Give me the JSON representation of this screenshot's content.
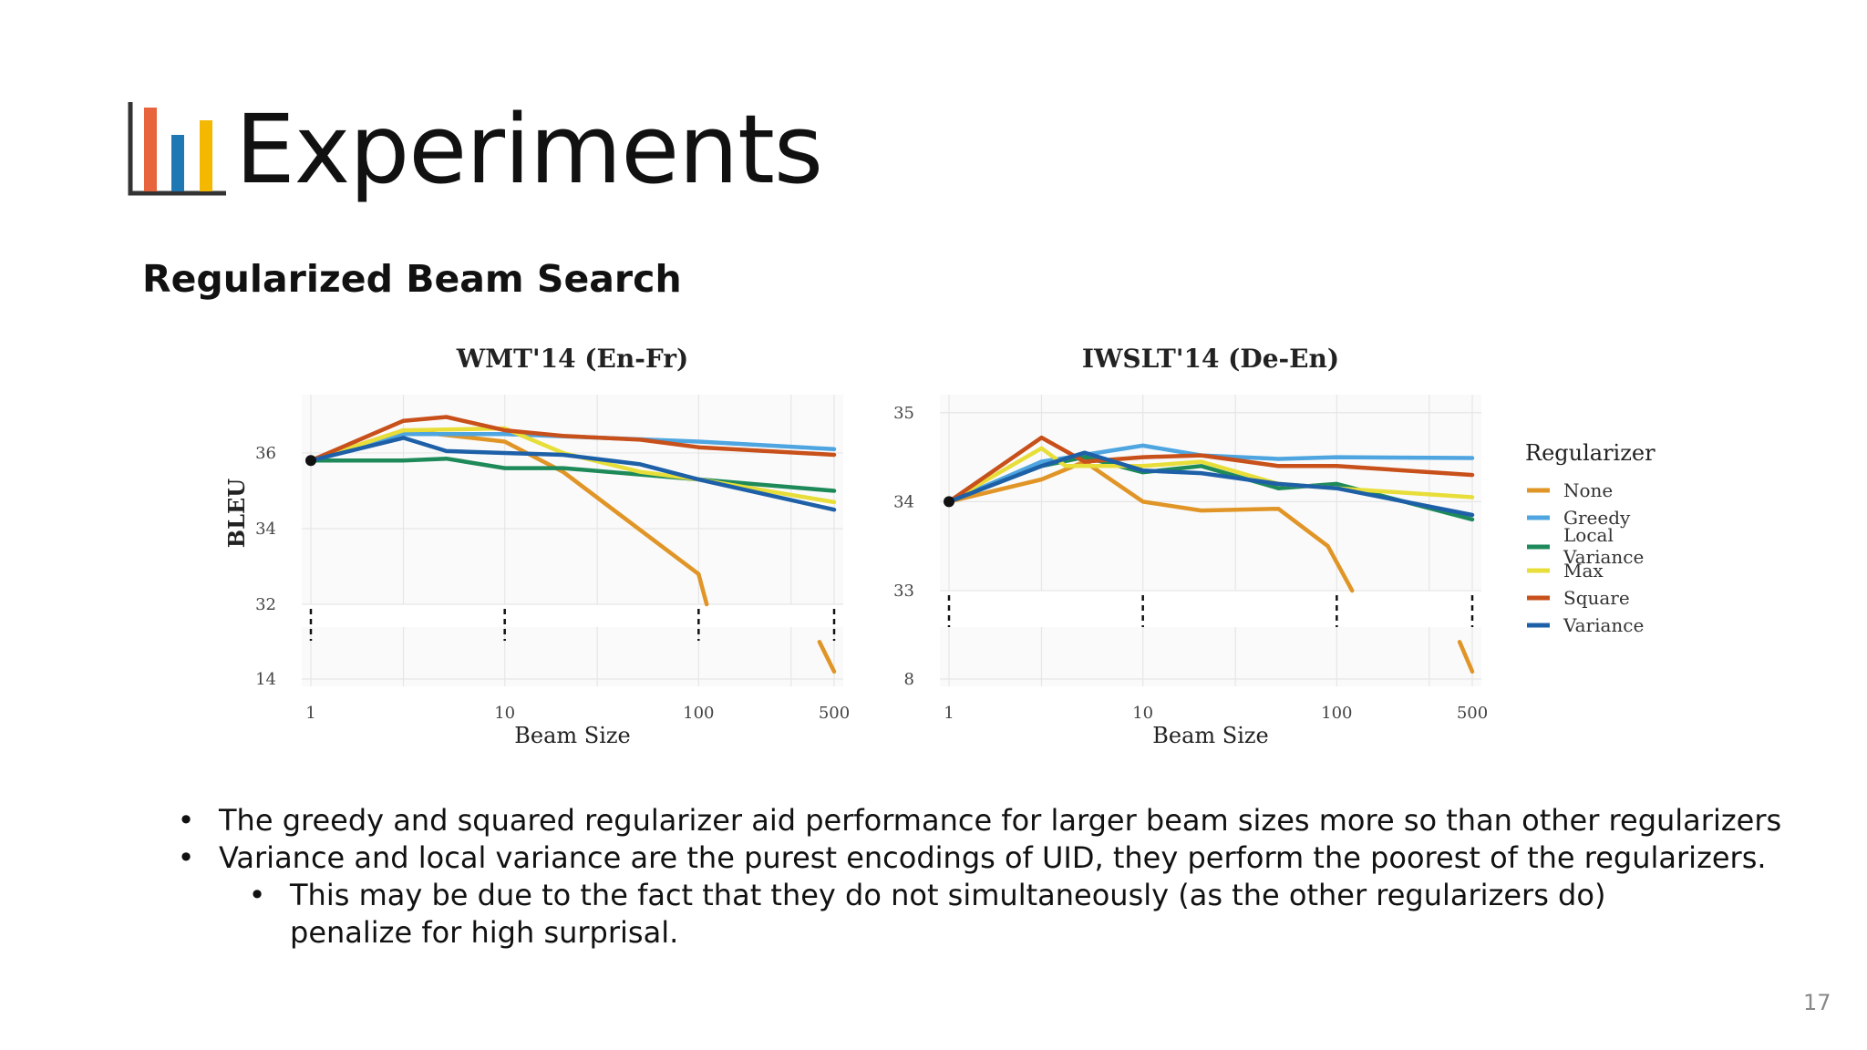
{
  "slide": {
    "title": "Experiments",
    "subtitle": "Regularized Beam Search",
    "page_number": "17",
    "logo": {
      "icon": "bar-chart-icon",
      "colors": [
        "#E8643C",
        "#1F78B4",
        "#F5B800"
      ]
    }
  },
  "bullets": [
    {
      "text": "The greedy and squared regularizer aid performance for larger beam sizes more so than other regularizers",
      "level": 1
    },
    {
      "text": "Variance and local variance are the purest encodings of UID, they perform the poorest of the regularizers.",
      "level": 1
    },
    {
      "text": "This may be due to the fact that they do not simultaneously (as the other regularizers do) penalize for high surprisal.",
      "level": 2
    }
  ],
  "chart_data": [
    {
      "type": "line",
      "title": "WMT'14 (En-Fr)",
      "xlabel": "Beam Size",
      "ylabel": "BLEU",
      "x_scale": "log",
      "x_ticks": [
        1,
        10,
        100,
        500
      ],
      "y_ticks_upper": [
        32,
        34,
        36
      ],
      "y_ticks_lower": [
        14
      ],
      "ylim_upper": [
        32,
        37.3
      ],
      "broken_axis": true,
      "grid": true,
      "series": [
        {
          "name": "None",
          "color": "#E09526",
          "points": [
            [
              1,
              35.8
            ],
            [
              3,
              36.6
            ],
            [
              10,
              36.3
            ],
            [
              20,
              35.5
            ],
            [
              100,
              32.8
            ],
            [
              110,
              32
            ]
          ],
          "lower_points": [
            [
              420,
              16.5
            ],
            [
              500,
              14.5
            ]
          ]
        },
        {
          "name": "Greedy",
          "color": "#4EA5E0",
          "points": [
            [
              1,
              35.8
            ],
            [
              3,
              36.5
            ],
            [
              10,
              36.5
            ],
            [
              100,
              36.3
            ],
            [
              500,
              36.1
            ]
          ]
        },
        {
          "name": "Local Variance",
          "color": "#1E8A5A",
          "points": [
            [
              1,
              35.8
            ],
            [
              3,
              35.8
            ],
            [
              5,
              35.85
            ],
            [
              10,
              35.6
            ],
            [
              20,
              35.6
            ],
            [
              100,
              35.3
            ],
            [
              500,
              35.0
            ]
          ]
        },
        {
          "name": "Max",
          "color": "#E8DE3A",
          "points": [
            [
              1,
              35.8
            ],
            [
              3,
              36.6
            ],
            [
              10,
              36.65
            ],
            [
              20,
              36.0
            ],
            [
              50,
              35.5
            ],
            [
              100,
              35.3
            ],
            [
              500,
              34.7
            ]
          ]
        },
        {
          "name": "Square",
          "color": "#C8501A",
          "points": [
            [
              1,
              35.8
            ],
            [
              3,
              36.85
            ],
            [
              5,
              36.95
            ],
            [
              10,
              36.6
            ],
            [
              20,
              36.45
            ],
            [
              50,
              36.35
            ],
            [
              100,
              36.15
            ],
            [
              500,
              35.95
            ]
          ]
        },
        {
          "name": "Variance",
          "color": "#1E60A8",
          "points": [
            [
              1,
              35.8
            ],
            [
              3,
              36.4
            ],
            [
              5,
              36.05
            ],
            [
              10,
              36.0
            ],
            [
              20,
              35.95
            ],
            [
              50,
              35.7
            ],
            [
              100,
              35.3
            ],
            [
              500,
              34.5
            ]
          ]
        }
      ]
    },
    {
      "type": "line",
      "title": "IWSLT'14 (De-En)",
      "xlabel": "Beam Size",
      "ylabel": "",
      "x_scale": "log",
      "x_ticks": [
        1,
        10,
        100,
        500
      ],
      "y_ticks_upper": [
        33,
        34,
        35
      ],
      "y_ticks_lower": [
        8
      ],
      "ylim_upper": [
        33,
        35.1
      ],
      "broken_axis": true,
      "grid": true,
      "series": [
        {
          "name": "None",
          "color": "#E09526",
          "points": [
            [
              1,
              34.0
            ],
            [
              3,
              34.25
            ],
            [
              5,
              34.45
            ],
            [
              10,
              34.0
            ],
            [
              20,
              33.9
            ],
            [
              50,
              33.92
            ],
            [
              90,
              33.5
            ],
            [
              120,
              33.0
            ]
          ],
          "lower_points": [
            [
              430,
              10.5
            ],
            [
              500,
              8.5
            ]
          ]
        },
        {
          "name": "Greedy",
          "color": "#4EA5E0",
          "points": [
            [
              1,
              34.0
            ],
            [
              3,
              34.45
            ],
            [
              10,
              34.63
            ],
            [
              20,
              34.52
            ],
            [
              50,
              34.48
            ],
            [
              100,
              34.5
            ],
            [
              500,
              34.49
            ]
          ]
        },
        {
          "name": "Local Variance",
          "color": "#1E8A5A",
          "points": [
            [
              1,
              34.0
            ],
            [
              3,
              34.4
            ],
            [
              5,
              34.5
            ],
            [
              10,
              34.33
            ],
            [
              20,
              34.4
            ],
            [
              50,
              34.15
            ],
            [
              100,
              34.2
            ],
            [
              500,
              33.8
            ]
          ]
        },
        {
          "name": "Max",
          "color": "#E8DE3A",
          "points": [
            [
              1,
              34.0
            ],
            [
              3,
              34.6
            ],
            [
              4,
              34.4
            ],
            [
              6,
              34.4
            ],
            [
              10,
              34.4
            ],
            [
              20,
              34.45
            ],
            [
              50,
              34.2
            ],
            [
              100,
              34.15
            ],
            [
              500,
              34.05
            ]
          ]
        },
        {
          "name": "Square",
          "color": "#C8501A",
          "points": [
            [
              1,
              34.0
            ],
            [
              3,
              34.72
            ],
            [
              5,
              34.45
            ],
            [
              10,
              34.5
            ],
            [
              20,
              34.52
            ],
            [
              50,
              34.4
            ],
            [
              100,
              34.4
            ],
            [
              500,
              34.3
            ]
          ]
        },
        {
          "name": "Variance",
          "color": "#1E60A8",
          "points": [
            [
              1,
              34.0
            ],
            [
              3,
              34.4
            ],
            [
              5,
              34.55
            ],
            [
              10,
              34.35
            ],
            [
              20,
              34.32
            ],
            [
              50,
              34.2
            ],
            [
              100,
              34.15
            ],
            [
              500,
              33.85
            ]
          ]
        }
      ]
    }
  ],
  "legend": {
    "title": "Regularizer",
    "placement": "right",
    "items": [
      {
        "label": "None",
        "color": "#E09526"
      },
      {
        "label": "Greedy",
        "color": "#4EA5E0"
      },
      {
        "label": "Local Variance",
        "color": "#1E8A5A"
      },
      {
        "label": "Max",
        "color": "#E8DE3A"
      },
      {
        "label": "Square",
        "color": "#C8501A"
      },
      {
        "label": "Variance",
        "color": "#1E60A8"
      }
    ]
  }
}
